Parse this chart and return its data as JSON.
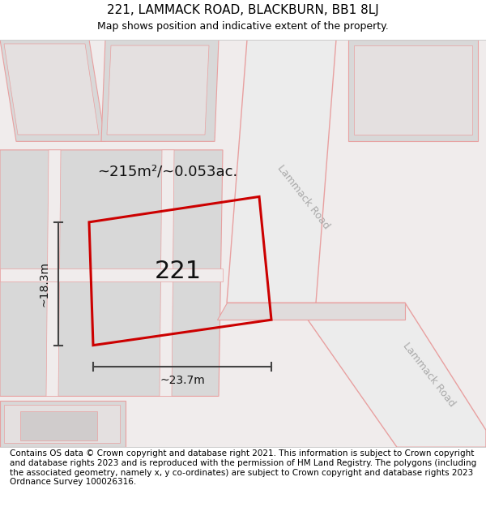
{
  "title": "221, LAMMACK ROAD, BLACKBURN, BB1 8LJ",
  "subtitle": "Map shows position and indicative extent of the property.",
  "footer": "Contains OS data © Crown copyright and database right 2021. This information is subject to Crown copyright and database rights 2023 and is reproduced with the permission of HM Land Registry. The polygons (including the associated geometry, namely x, y co-ordinates) are subject to Crown copyright and database rights 2023 Ordnance Survey 100026316.",
  "area_label": "~215m²/~0.053ac.",
  "number_label": "221",
  "width_label": "~23.7m",
  "height_label": "~18.3m",
  "road_label_1": "Lammack Road",
  "road_label_2": "Lammack Road",
  "map_bg": "#f0ecec",
  "block_color": "#d8d8d8",
  "block_inner_color": "#e4e0e0",
  "road_fill_color": "#ececec",
  "road_line_color": "#e8a0a0",
  "red_plot_color": "#cc0000",
  "dim_line_color": "#444444",
  "title_fontsize": 11,
  "subtitle_fontsize": 9,
  "footer_fontsize": 7.5
}
